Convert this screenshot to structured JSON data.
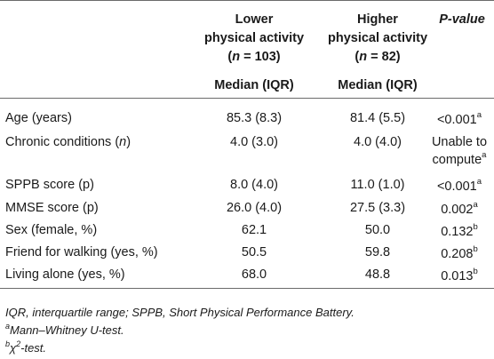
{
  "headers": {
    "col_low": [
      "Lower",
      "physical activity",
      "(n = 103)"
    ],
    "col_high": [
      "Higher",
      "physical activity",
      "(n = 82)"
    ],
    "col_p": "P-value",
    "median_label": "Median (IQR)"
  },
  "rows": [
    {
      "label_pre": "Age (years)",
      "label_it": "",
      "label_post": "",
      "low": "85.3 (8.3)",
      "high": "81.4 (5.5)",
      "p": "<0.001",
      "p_sup": "a"
    },
    {
      "label_pre": "Chronic conditions (",
      "label_it": "n",
      "label_post": ")",
      "low": "4.0 (3.0)",
      "high": "4.0 (4.0)",
      "p_line1": "Unable to",
      "p": "compute",
      "p_sup": "a"
    },
    {
      "label_pre": "SPPB score (p)",
      "label_it": "",
      "label_post": "",
      "low": "8.0 (4.0)",
      "high": "11.0 (1.0)",
      "p": "<0.001",
      "p_sup": "a"
    },
    {
      "label_pre": "MMSE score (p)",
      "label_it": "",
      "label_post": "",
      "low": "26.0 (4.0)",
      "high": "27.5 (3.3)",
      "p": "0.002",
      "p_sup": "a"
    },
    {
      "label_pre": "Sex (female, %)",
      "label_it": "",
      "label_post": "",
      "low": "62.1",
      "high": "50.0",
      "p": "0.132",
      "p_sup": "b"
    },
    {
      "label_pre": "Friend for walking (yes, %)",
      "label_it": "",
      "label_post": "",
      "low": "50.5",
      "high": "59.8",
      "p": "0.208",
      "p_sup": "b"
    },
    {
      "label_pre": "Living alone (yes, %)",
      "label_it": "",
      "label_post": "",
      "low": "68.0",
      "high": "48.8",
      "p": "0.013",
      "p_sup": "b"
    }
  ],
  "footnotes": {
    "abbrev": "IQR, interquartile range; SPPB, Short Physical Performance Battery.",
    "a_mark": "a",
    "a_text": "Mann–Whitney U-test.",
    "b_mark": "b",
    "b_chi": "χ",
    "b_sq": "2",
    "b_text": "-test."
  }
}
